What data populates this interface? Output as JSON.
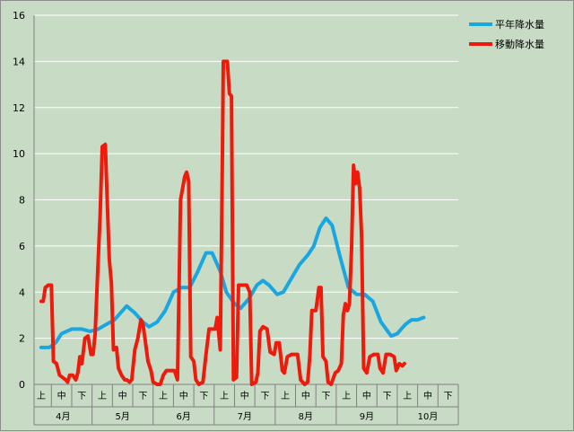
{
  "chart_data": {
    "type": "line",
    "title": "",
    "xlabel": "",
    "ylabel": "",
    "ylim": [
      0,
      16
    ],
    "yticks": [
      0,
      2,
      4,
      6,
      8,
      10,
      12,
      14,
      16
    ],
    "grid": true,
    "legend_position": "top-right",
    "months": [
      "4月",
      "5月",
      "6月",
      "7月",
      "8月",
      "9月",
      "10月"
    ],
    "periods": [
      "上",
      "中",
      "下"
    ],
    "x": [
      0,
      1,
      2,
      3,
      4,
      5,
      6,
      7,
      8,
      9,
      10,
      11,
      12,
      13,
      14,
      15,
      16,
      17,
      18,
      19,
      20
    ],
    "series": [
      {
        "name": "平年降水量",
        "color": "#1aa6e0",
        "points": [
          [
            0,
            1.6
          ],
          [
            0.4,
            1.6
          ],
          [
            0.7,
            1.8
          ],
          [
            1.0,
            2.2
          ],
          [
            1.5,
            2.4
          ],
          [
            2.0,
            2.4
          ],
          [
            2.4,
            2.3
          ],
          [
            2.8,
            2.4
          ],
          [
            3.2,
            2.6
          ],
          [
            3.6,
            2.8
          ],
          [
            4.2,
            3.4
          ],
          [
            4.6,
            3.1
          ],
          [
            5.0,
            2.7
          ],
          [
            5.3,
            2.5
          ],
          [
            5.7,
            2.7
          ],
          [
            6.1,
            3.2
          ],
          [
            6.5,
            4.0
          ],
          [
            6.9,
            4.2
          ],
          [
            7.3,
            4.2
          ],
          [
            7.7,
            4.9
          ],
          [
            8.1,
            5.7
          ],
          [
            8.4,
            5.7
          ],
          [
            8.8,
            4.9
          ],
          [
            9.1,
            4.0
          ],
          [
            9.5,
            3.5
          ],
          [
            9.8,
            3.3
          ],
          [
            10.2,
            3.7
          ],
          [
            10.6,
            4.3
          ],
          [
            10.9,
            4.5
          ],
          [
            11.2,
            4.3
          ],
          [
            11.6,
            3.9
          ],
          [
            11.9,
            4.0
          ],
          [
            12.3,
            4.6
          ],
          [
            12.7,
            5.2
          ],
          [
            13.1,
            5.6
          ],
          [
            13.4,
            6.0
          ],
          [
            13.7,
            6.8
          ],
          [
            14.0,
            7.2
          ],
          [
            14.3,
            6.9
          ],
          [
            14.7,
            5.5
          ],
          [
            15.1,
            4.2
          ],
          [
            15.5,
            3.9
          ],
          [
            15.9,
            3.9
          ],
          [
            16.3,
            3.6
          ],
          [
            16.7,
            2.7
          ],
          [
            17.2,
            2.1
          ],
          [
            17.5,
            2.2
          ],
          [
            17.9,
            2.6
          ],
          [
            18.2,
            2.8
          ],
          [
            18.5,
            2.8
          ],
          [
            18.8,
            2.9
          ]
        ]
      },
      {
        "name": "移動降水量",
        "color": "#ee1a0c",
        "points": [
          [
            0.0,
            3.6
          ],
          [
            0.1,
            3.6
          ],
          [
            0.2,
            4.2
          ],
          [
            0.35,
            4.3
          ],
          [
            0.5,
            4.3
          ],
          [
            0.6,
            1.0
          ],
          [
            0.75,
            0.9
          ],
          [
            0.9,
            0.4
          ],
          [
            1.05,
            0.3
          ],
          [
            1.2,
            0.2
          ],
          [
            1.3,
            0.1
          ],
          [
            1.4,
            0.4
          ],
          [
            1.55,
            0.4
          ],
          [
            1.7,
            0.2
          ],
          [
            1.8,
            0.5
          ],
          [
            1.9,
            1.2
          ],
          [
            2.0,
            0.9
          ],
          [
            2.15,
            2.0
          ],
          [
            2.3,
            2.1
          ],
          [
            2.45,
            1.3
          ],
          [
            2.55,
            1.3
          ],
          [
            2.65,
            2.2
          ],
          [
            2.75,
            4.3
          ],
          [
            2.9,
            7.4
          ],
          [
            3.0,
            10.3
          ],
          [
            3.15,
            10.4
          ],
          [
            3.25,
            7.8
          ],
          [
            3.35,
            5.4
          ],
          [
            3.45,
            4.4
          ],
          [
            3.55,
            1.5
          ],
          [
            3.7,
            1.6
          ],
          [
            3.8,
            0.7
          ],
          [
            3.95,
            0.4
          ],
          [
            4.1,
            0.2
          ],
          [
            4.2,
            0.2
          ],
          [
            4.35,
            0.1
          ],
          [
            4.45,
            0.2
          ],
          [
            4.6,
            1.5
          ],
          [
            4.75,
            2.0
          ],
          [
            4.9,
            2.8
          ],
          [
            5.0,
            2.6
          ],
          [
            5.1,
            2.0
          ],
          [
            5.25,
            1.0
          ],
          [
            5.4,
            0.6
          ],
          [
            5.5,
            0.1
          ],
          [
            5.7,
            0.0
          ],
          [
            5.85,
            0.0
          ],
          [
            6.0,
            0.4
          ],
          [
            6.15,
            0.6
          ],
          [
            6.35,
            0.6
          ],
          [
            6.55,
            0.6
          ],
          [
            6.7,
            0.2
          ],
          [
            6.85,
            8.0
          ],
          [
            6.95,
            8.5
          ],
          [
            7.05,
            9.0
          ],
          [
            7.15,
            9.2
          ],
          [
            7.25,
            8.8
          ],
          [
            7.35,
            1.2
          ],
          [
            7.5,
            1.0
          ],
          [
            7.6,
            0.2
          ],
          [
            7.75,
            0.0
          ],
          [
            7.95,
            0.1
          ],
          [
            8.1,
            1.3
          ],
          [
            8.25,
            2.4
          ],
          [
            8.4,
            2.4
          ],
          [
            8.55,
            2.4
          ],
          [
            8.65,
            2.9
          ],
          [
            8.8,
            1.5
          ],
          [
            8.9,
            9.2
          ],
          [
            8.95,
            14.0
          ],
          [
            9.15,
            14.0
          ],
          [
            9.25,
            12.6
          ],
          [
            9.35,
            12.5
          ],
          [
            9.45,
            0.2
          ],
          [
            9.6,
            0.3
          ],
          [
            9.7,
            4.3
          ],
          [
            9.85,
            4.3
          ],
          [
            10.1,
            4.3
          ],
          [
            10.25,
            4.0
          ],
          [
            10.35,
            0.0
          ],
          [
            10.55,
            0.1
          ],
          [
            10.65,
            0.5
          ],
          [
            10.75,
            2.3
          ],
          [
            10.9,
            2.5
          ],
          [
            11.1,
            2.4
          ],
          [
            11.25,
            1.4
          ],
          [
            11.45,
            1.3
          ],
          [
            11.55,
            1.8
          ],
          [
            11.7,
            1.8
          ],
          [
            11.85,
            0.6
          ],
          [
            11.95,
            0.5
          ],
          [
            12.1,
            1.2
          ],
          [
            12.3,
            1.3
          ],
          [
            12.6,
            1.3
          ],
          [
            12.75,
            0.2
          ],
          [
            12.95,
            0.0
          ],
          [
            13.1,
            0.1
          ],
          [
            13.2,
            1.2
          ],
          [
            13.3,
            3.2
          ],
          [
            13.5,
            3.2
          ],
          [
            13.65,
            4.2
          ],
          [
            13.75,
            4.2
          ],
          [
            13.85,
            1.2
          ],
          [
            14.0,
            1.0
          ],
          [
            14.1,
            0.1
          ],
          [
            14.25,
            0.0
          ],
          [
            14.45,
            0.5
          ],
          [
            14.6,
            0.6
          ],
          [
            14.75,
            0.9
          ],
          [
            14.85,
            3.0
          ],
          [
            14.95,
            3.5
          ],
          [
            15.05,
            3.2
          ],
          [
            15.15,
            3.5
          ],
          [
            15.25,
            5.8
          ],
          [
            15.35,
            9.5
          ],
          [
            15.45,
            8.7
          ],
          [
            15.55,
            9.2
          ],
          [
            15.65,
            8.5
          ],
          [
            15.75,
            6.4
          ],
          [
            15.85,
            0.7
          ],
          [
            16.0,
            0.5
          ],
          [
            16.15,
            1.2
          ],
          [
            16.35,
            1.3
          ],
          [
            16.55,
            1.3
          ],
          [
            16.65,
            0.7
          ],
          [
            16.8,
            0.5
          ],
          [
            16.95,
            1.3
          ],
          [
            17.15,
            1.3
          ],
          [
            17.35,
            1.2
          ],
          [
            17.45,
            0.6
          ],
          [
            17.6,
            0.9
          ],
          [
            17.75,
            0.8
          ],
          [
            17.85,
            0.9
          ]
        ]
      }
    ]
  }
}
